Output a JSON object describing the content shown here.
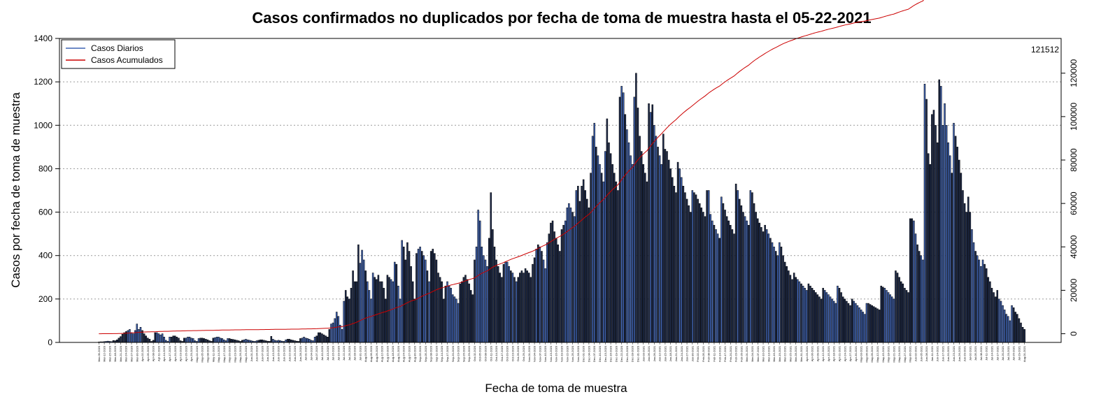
{
  "chart_data": {
    "type": "bar",
    "title": "Casos confirmados no duplicados por fecha de toma de muestra hasta el 05-22-2021",
    "xlabel": "Fecha de toma de muestra",
    "ylabel": "Casos por fecha de toma de muestra",
    "ylim": [
      0,
      1400
    ],
    "yticks": [
      0,
      200,
      400,
      600,
      800,
      1000,
      1200,
      1400
    ],
    "y2lim": [
      -4000,
      136000
    ],
    "y2ticks": [
      0,
      20000,
      40000,
      60000,
      80000,
      100000,
      120000
    ],
    "grid": "horizontal dotted",
    "legend_position": "top-left",
    "start_date": "Mar-09-2020",
    "tick_every_days": 3,
    "final_label": "121512",
    "series": [
      {
        "name": "Casos Diarios",
        "kind": "bar",
        "color": "#3f63b3",
        "edge_color": "#000000",
        "axis": "left",
        "values": [
          2,
          3,
          3,
          4,
          5,
          6,
          5,
          4,
          9,
          8,
          12,
          20,
          27,
          38,
          45,
          50,
          55,
          60,
          45,
          40,
          55,
          85,
          60,
          70,
          55,
          40,
          30,
          20,
          15,
          5,
          10,
          45,
          45,
          40,
          35,
          40,
          25,
          10,
          5,
          25,
          25,
          30,
          30,
          25,
          20,
          8,
          5,
          20,
          20,
          25,
          25,
          20,
          18,
          8,
          5,
          18,
          20,
          20,
          18,
          15,
          12,
          8,
          5,
          20,
          22,
          25,
          25,
          20,
          18,
          12,
          8,
          18,
          18,
          15,
          14,
          12,
          10,
          8,
          5,
          10,
          12,
          15,
          12,
          10,
          8,
          6,
          5,
          8,
          10,
          12,
          12,
          10,
          8,
          6,
          5,
          28,
          15,
          10,
          8,
          10,
          8,
          6,
          5,
          12,
          15,
          15,
          12,
          10,
          8,
          6,
          5,
          18,
          20,
          25,
          20,
          18,
          15,
          10,
          8,
          25,
          30,
          45,
          45,
          40,
          35,
          30,
          25,
          60,
          85,
          90,
          110,
          140,
          120,
          80,
          60,
          190,
          240,
          210,
          200,
          250,
          330,
          280,
          280,
          450,
          365,
          425,
          380,
          330,
          280,
          240,
          200,
          320,
          300,
          290,
          310,
          280,
          280,
          250,
          200,
          310,
          300,
          290,
          280,
          370,
          360,
          260,
          200,
          470,
          440,
          380,
          460,
          420,
          350,
          280,
          200,
          410,
          430,
          440,
          420,
          400,
          380,
          330,
          280,
          420,
          430,
          410,
          380,
          320,
          300,
          280,
          200,
          260,
          280,
          260,
          250,
          220,
          210,
          200,
          180,
          270,
          280,
          300,
          310,
          290,
          270,
          240,
          220,
          380,
          440,
          610,
          560,
          440,
          400,
          380,
          350,
          480,
          690,
          520,
          440,
          380,
          350,
          320,
          300,
          360,
          370,
          370,
          350,
          330,
          320,
          300,
          280,
          300,
          320,
          330,
          320,
          340,
          330,
          320,
          300,
          360,
          390,
          430,
          450,
          440,
          420,
          380,
          340,
          460,
          500,
          550,
          560,
          510,
          480,
          450,
          420,
          520,
          540,
          560,
          620,
          640,
          620,
          600,
          580,
          700,
          720,
          650,
          720,
          750,
          700,
          660,
          620,
          780,
          950,
          1010,
          900,
          860,
          820,
          780,
          740,
          880,
          1030,
          920,
          870,
          820,
          780,
          740,
          700,
          1130,
          1180,
          1150,
          1050,
          980,
          920,
          860,
          820,
          1130,
          1240,
          1080,
          950,
          880,
          820,
          780,
          740,
          1100,
          1060,
          1095,
          1000,
          950,
          900,
          860,
          820,
          960,
          890,
          880,
          840,
          800,
          760,
          720,
          690,
          830,
          800,
          760,
          720,
          690,
          660,
          630,
          600,
          700,
          690,
          680,
          660,
          640,
          620,
          600,
          580,
          700,
          700,
          590,
          560,
          540,
          520,
          500,
          480,
          670,
          640,
          610,
          580,
          560,
          540,
          520,
          500,
          730,
          700,
          660,
          630,
          600,
          580,
          560,
          540,
          700,
          690,
          640,
          600,
          570,
          550,
          530,
          510,
          540,
          520,
          500,
          480,
          460,
          440,
          420,
          400,
          460,
          440,
          400,
          370,
          350,
          330,
          310,
          290,
          320,
          300,
          290,
          280,
          270,
          260,
          250,
          240,
          270,
          260,
          250,
          240,
          230,
          220,
          210,
          200,
          250,
          240,
          230,
          220,
          210,
          200,
          190,
          180,
          260,
          250,
          230,
          210,
          200,
          190,
          180,
          170,
          200,
          190,
          180,
          170,
          160,
          150,
          140,
          130,
          180,
          180,
          175,
          170,
          165,
          160,
          155,
          150,
          260,
          255,
          250,
          240,
          230,
          220,
          210,
          200,
          330,
          320,
          300,
          280,
          270,
          250,
          240,
          230,
          570,
          570,
          560,
          500,
          450,
          420,
          400,
          380,
          1190,
          1120,
          870,
          820,
          1050,
          1070,
          1000,
          920,
          1210,
          1180,
          1000,
          1100,
          1000,
          920,
          860,
          780,
          1010,
          950,
          900,
          840,
          780,
          700,
          640,
          600,
          670,
          600,
          520,
          460,
          420,
          400,
          380,
          350,
          380,
          360,
          340,
          300,
          280,
          250,
          230,
          210,
          240,
          200,
          190,
          170,
          150,
          130,
          120,
          100,
          170,
          160,
          140,
          130,
          110,
          90,
          70,
          60
        ]
      },
      {
        "name": "Casos Acumulados",
        "kind": "line",
        "color": "#cc0000",
        "axis": "right"
      }
    ]
  }
}
